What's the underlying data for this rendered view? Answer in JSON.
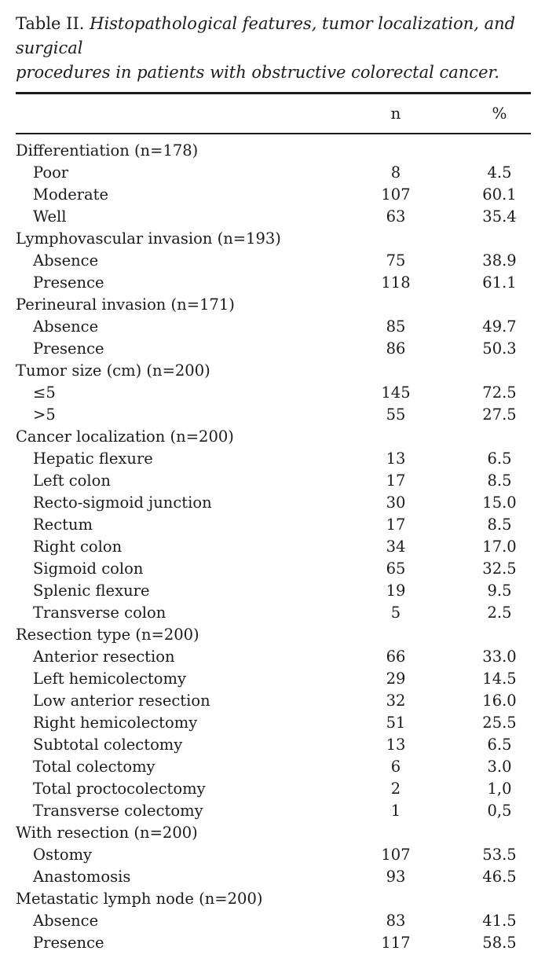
{
  "colors": {
    "background": "#ffffff",
    "text": "#1b1b1b",
    "rule": "#1c1c1c"
  },
  "caption": {
    "prefix": "Table II.",
    "line1": "Histopathological features, tumor localization, and surgical",
    "line2": "procedures in patients with obstructive colorectal cancer."
  },
  "table": {
    "columns": {
      "n": "n",
      "pct": "%"
    },
    "rows": [
      {
        "label": "Differentiation (n=178)",
        "indent": false,
        "n": "",
        "pct": ""
      },
      {
        "label": "Poor",
        "indent": true,
        "n": "8",
        "pct": "4.5"
      },
      {
        "label": "Moderate",
        "indent": true,
        "n": "107",
        "pct": "60.1"
      },
      {
        "label": "Well",
        "indent": true,
        "n": "63",
        "pct": "35.4"
      },
      {
        "label": "Lymphovascular invasion (n=193)",
        "indent": false,
        "n": "",
        "pct": ""
      },
      {
        "label": "Absence",
        "indent": true,
        "n": "75",
        "pct": "38.9"
      },
      {
        "label": "Presence",
        "indent": true,
        "n": "118",
        "pct": "61.1"
      },
      {
        "label": "Perineural invasion (n=171)",
        "indent": false,
        "n": "",
        "pct": ""
      },
      {
        "label": "Absence",
        "indent": true,
        "n": "85",
        "pct": "49.7"
      },
      {
        "label": "Presence",
        "indent": true,
        "n": "86",
        "pct": "50.3"
      },
      {
        "label": "Tumor size (cm) (n=200)",
        "indent": false,
        "n": "",
        "pct": ""
      },
      {
        "label": "≤5",
        "indent": true,
        "n": "145",
        "pct": "72.5"
      },
      {
        "label": ">5",
        "indent": true,
        "n": "55",
        "pct": "27.5"
      },
      {
        "label": "Cancer localization (n=200)",
        "indent": false,
        "n": "",
        "pct": ""
      },
      {
        "label": "Hepatic flexure",
        "indent": true,
        "n": "13",
        "pct": "6.5"
      },
      {
        "label": "Left colon",
        "indent": true,
        "n": "17",
        "pct": "8.5"
      },
      {
        "label": "Recto-sigmoid junction",
        "indent": true,
        "n": "30",
        "pct": "15.0"
      },
      {
        "label": "Rectum",
        "indent": true,
        "n": "17",
        "pct": "8.5"
      },
      {
        "label": "Right colon",
        "indent": true,
        "n": "34",
        "pct": "17.0"
      },
      {
        "label": "Sigmoid colon",
        "indent": true,
        "n": "65",
        "pct": "32.5"
      },
      {
        "label": "Splenic flexure",
        "indent": true,
        "n": "19",
        "pct": "9.5"
      },
      {
        "label": "Transverse colon",
        "indent": true,
        "n": "5",
        "pct": "2.5"
      },
      {
        "label": "Resection type (n=200)",
        "indent": false,
        "n": "",
        "pct": ""
      },
      {
        "label": "Anterior resection",
        "indent": true,
        "n": "66",
        "pct": "33.0"
      },
      {
        "label": "Left hemicolectomy",
        "indent": true,
        "n": "29",
        "pct": "14.5"
      },
      {
        "label": "Low anterior resection",
        "indent": true,
        "n": "32",
        "pct": "16.0"
      },
      {
        "label": "Right hemicolectomy",
        "indent": true,
        "n": "51",
        "pct": "25.5"
      },
      {
        "label": "Subtotal colectomy",
        "indent": true,
        "n": "13",
        "pct": "6.5"
      },
      {
        "label": "Total colectomy",
        "indent": true,
        "n": "6",
        "pct": "3.0"
      },
      {
        "label": "Total proctocolectomy",
        "indent": true,
        "n": "2",
        "pct": "1,0"
      },
      {
        "label": "Transverse colectomy",
        "indent": true,
        "n": "1",
        "pct": "0,5"
      },
      {
        "label": "With resection (n=200)",
        "indent": false,
        "n": "",
        "pct": ""
      },
      {
        "label": "Ostomy",
        "indent": true,
        "n": "107",
        "pct": "53.5"
      },
      {
        "label": "Anastomosis",
        "indent": true,
        "n": "93",
        "pct": "46.5"
      },
      {
        "label": "Metastatic lymph node (n=200)",
        "indent": false,
        "n": "",
        "pct": ""
      },
      {
        "label": "Absence",
        "indent": true,
        "n": "83",
        "pct": "41.5"
      },
      {
        "label": "Presence",
        "indent": true,
        "n": "117",
        "pct": "58.5"
      }
    ]
  }
}
